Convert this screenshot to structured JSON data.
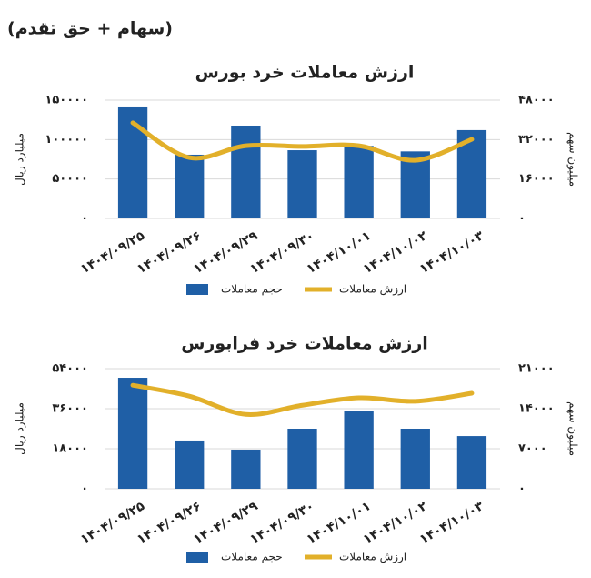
{
  "header": {
    "title": "(سهام + حق تقدم)"
  },
  "chart_data": [
    {
      "type": "bar",
      "title": "ارزش معاملات خرد بورس",
      "categories": [
        "۱۴۰۴/۰۹/۲۵",
        "۱۴۰۴/۰۹/۲۶",
        "۱۴۰۴/۰۹/۲۹",
        "۱۴۰۴/۰۹/۳۰",
        "۱۴۰۴/۱۰/۰۱",
        "۱۴۰۴/۱۰/۰۲",
        "۱۴۰۴/۱۰/۰۳"
      ],
      "series": [
        {
          "name": "حجم معاملات",
          "color": "#1f5fa6",
          "values": [
            140800,
            80800,
            117700,
            86500,
            92000,
            85000,
            112000
          ]
        },
        {
          "name": "ارزش معاملات",
          "color": "#e2b02a",
          "type": "line",
          "axis": "y2",
          "values": [
            38800,
            24700,
            29500,
            29200,
            29500,
            23600,
            32100
          ]
        }
      ],
      "ylabel": "میلیارد ریال",
      "y2label": "میلیون سهم",
      "ylim": [
        0,
        150000
      ],
      "yticks": [
        {
          "value": 0,
          "label": "۰"
        },
        {
          "value": 50000,
          "label": "۵۰۰۰۰"
        },
        {
          "value": 100000,
          "label": "۱۰۰۰۰۰"
        },
        {
          "value": 150000,
          "label": "۱۵۰۰۰۰"
        }
      ],
      "y2lim": [
        0,
        48000
      ],
      "y2ticks": [
        {
          "value": 0,
          "label": "۰"
        },
        {
          "value": 16000,
          "label": "۱۶۰۰۰"
        },
        {
          "value": 32000,
          "label": "۳۲۰۰۰"
        },
        {
          "value": 48000,
          "label": "۴۸۰۰۰"
        }
      ],
      "grid": true,
      "legend": "bottom"
    },
    {
      "type": "bar",
      "title": "ارزش معاملات خرد فرابورس",
      "categories": [
        "۱۴۰۴/۰۹/۲۵",
        "۱۴۰۴/۰۹/۲۶",
        "۱۴۰۴/۰۹/۲۹",
        "۱۴۰۴/۰۹/۳۰",
        "۱۴۰۴/۱۰/۰۱",
        "۱۴۰۴/۱۰/۰۲",
        "۱۴۰۴/۱۰/۰۳"
      ],
      "series": [
        {
          "name": "حجم معاملات",
          "color": "#1f5fa6",
          "values": [
            49900,
            21700,
            17600,
            27000,
            34800,
            27000,
            23700
          ]
        },
        {
          "name": "ارزش معاملات",
          "color": "#e2b02a",
          "type": "line",
          "axis": "y2",
          "values": [
            18100,
            16200,
            13000,
            14600,
            15900,
            15300,
            16700
          ]
        }
      ],
      "ylabel": "میلیارد ریال",
      "y2label": "میلیون سهم",
      "ylim": [
        0,
        54000
      ],
      "yticks": [
        {
          "value": 0,
          "label": "۰"
        },
        {
          "value": 18000,
          "label": "۱۸۰۰۰"
        },
        {
          "value": 36000,
          "label": "۳۶۰۰۰"
        },
        {
          "value": 54000,
          "label": "۵۴۰۰۰"
        }
      ],
      "y2lim": [
        0,
        21000
      ],
      "y2ticks": [
        {
          "value": 0,
          "label": "۰"
        },
        {
          "value": 7000,
          "label": "۷۰۰۰"
        },
        {
          "value": 14000,
          "label": "۱۴۰۰۰"
        },
        {
          "value": 21000,
          "label": "۲۱۰۰۰"
        }
      ],
      "grid": true,
      "legend": "bottom"
    }
  ]
}
